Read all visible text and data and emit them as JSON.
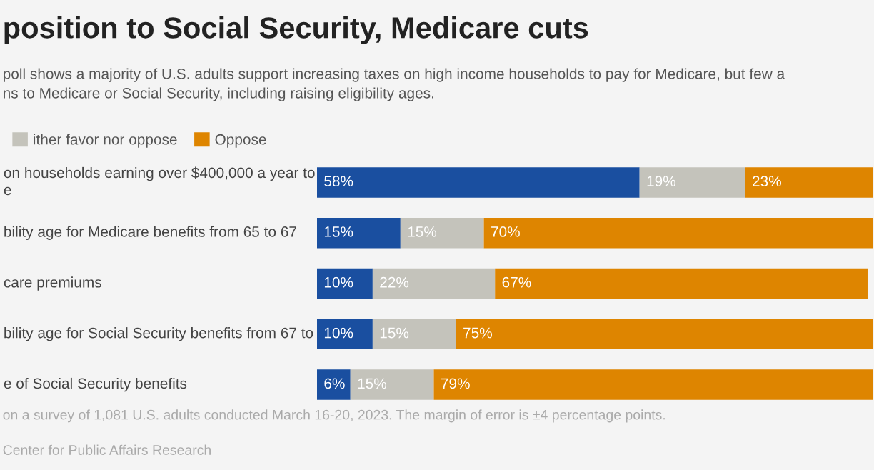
{
  "chart_data": {
    "type": "bar",
    "orientation": "horizontal",
    "stacked": true,
    "title": "position to Social Security, Medicare cuts",
    "subtitle": "poll shows a majority of U.S. adults support increasing taxes on high income households to pay for Medicare, but few a\nns to Medicare or Social Security, including raising eligibility ages.",
    "categories": [
      "on households earning over $400,000 a year to\ne",
      "bility age for Medicare benefits from 65 to 67",
      "care premiums",
      "bility age for Social Security benefits from 67 to",
      "e of Social Security benefits"
    ],
    "series": [
      {
        "color": "#1a4fa0",
        "values": [
          58,
          15,
          10,
          10,
          6
        ],
        "value_labels": [
          "58%",
          "15%",
          "10%",
          "10%",
          "6%"
        ]
      },
      {
        "name": "ither favor nor oppose",
        "color": "#c4c3bb",
        "values": [
          19,
          15,
          22,
          15,
          15
        ],
        "value_labels": [
          "19%",
          "15%",
          "22%",
          "15%",
          "15%"
        ]
      },
      {
        "name": "Oppose",
        "color": "#de8500",
        "values": [
          23,
          70,
          67,
          75,
          79
        ],
        "value_labels": [
          "23%",
          "70%",
          "67%",
          "75%",
          "79%"
        ]
      }
    ],
    "legend": "top left",
    "tick_labels": "y",
    "annotations": [
      "on a survey of 1,081 U.S. adults conducted March 16-20, 2023. The margin of error is ±4 percentage points.",
      "Center for Public Affairs Research"
    ]
  }
}
